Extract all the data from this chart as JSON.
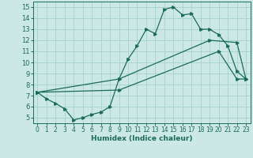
{
  "xlabel": "Humidex (Indice chaleur)",
  "bg_color": "#cce8e4",
  "grid_color": "#aad4cf",
  "line_color": "#1a6b5a",
  "xlim": [
    -0.5,
    23.5
  ],
  "ylim": [
    4.5,
    15.5
  ],
  "xticks": [
    0,
    1,
    2,
    3,
    4,
    5,
    6,
    7,
    8,
    9,
    10,
    11,
    12,
    13,
    14,
    15,
    16,
    17,
    18,
    19,
    20,
    21,
    22,
    23
  ],
  "yticks": [
    5,
    6,
    7,
    8,
    9,
    10,
    11,
    12,
    13,
    14,
    15
  ],
  "line1_x": [
    0,
    1,
    2,
    3,
    4,
    5,
    6,
    7,
    8,
    9,
    10,
    11,
    12,
    13,
    14,
    15,
    16,
    17,
    18,
    19,
    20,
    21,
    22,
    23
  ],
  "line1_y": [
    7.3,
    6.7,
    6.3,
    5.8,
    4.8,
    5.0,
    5.3,
    5.5,
    6.0,
    8.5,
    10.3,
    11.5,
    13.0,
    12.6,
    14.8,
    15.0,
    14.3,
    14.4,
    13.0,
    13.0,
    12.5,
    11.5,
    9.2,
    8.5
  ],
  "line2_x": [
    0,
    9,
    19,
    22,
    23
  ],
  "line2_y": [
    7.3,
    8.5,
    12.0,
    11.8,
    8.5
  ],
  "line3_x": [
    0,
    9,
    20,
    22,
    23
  ],
  "line3_y": [
    7.3,
    7.5,
    11.0,
    8.5,
    8.5
  ]
}
